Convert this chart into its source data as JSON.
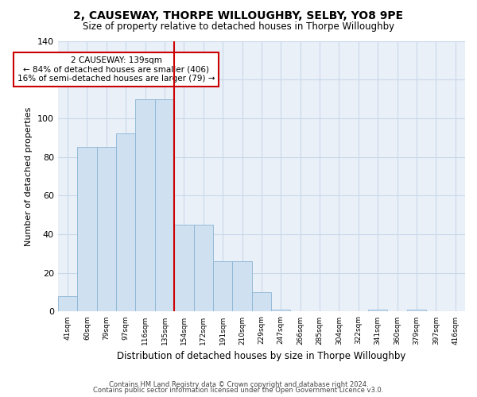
{
  "title": "2, CAUSEWAY, THORPE WILLOUGHBY, SELBY, YO8 9PE",
  "subtitle": "Size of property relative to detached houses in Thorpe Willoughby",
  "xlabel": "Distribution of detached houses by size in Thorpe Willoughby",
  "ylabel": "Number of detached properties",
  "bar_values": [
    8,
    85,
    85,
    92,
    110,
    110,
    45,
    45,
    26,
    26,
    10,
    1,
    0,
    0,
    0,
    0,
    1,
    0,
    1,
    0,
    0
  ],
  "bin_labels": [
    "41sqm",
    "60sqm",
    "79sqm",
    "97sqm",
    "116sqm",
    "135sqm",
    "154sqm",
    "172sqm",
    "191sqm",
    "210sqm",
    "229sqm",
    "247sqm",
    "266sqm",
    "285sqm",
    "304sqm",
    "322sqm",
    "341sqm",
    "360sqm",
    "379sqm",
    "397sqm",
    "416sqm"
  ],
  "bar_color": "#cfe0f0",
  "bar_edge_color": "#8ab4d4",
  "grid_color": "#c8d8e8",
  "bg_color": "#eaf0f8",
  "red_line_color": "#cc0000",
  "red_line_index": 5,
  "annotation_text": "2 CAUSEWAY: 139sqm\n← 84% of detached houses are smaller (406)\n16% of semi-detached houses are larger (79) →",
  "annotation_box_color": "#ffffff",
  "annotation_box_edge": "#cc0000",
  "ylim": [
    0,
    140
  ],
  "yticks": [
    0,
    20,
    40,
    60,
    80,
    100,
    120,
    140
  ],
  "footer1": "Contains HM Land Registry data © Crown copyright and database right 2024.",
  "footer2": "Contains public sector information licensed under the Open Government Licence v3.0."
}
